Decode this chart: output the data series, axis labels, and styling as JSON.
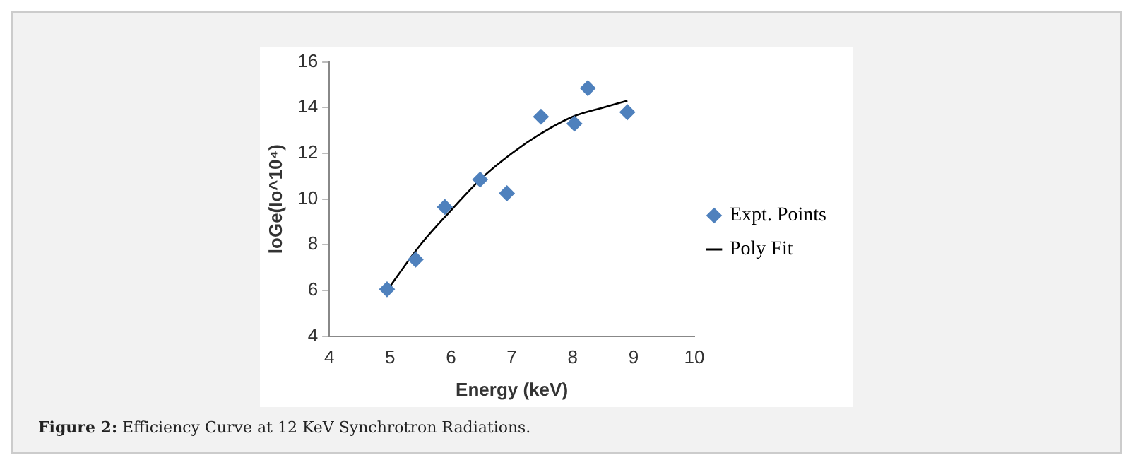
{
  "chart_data": {
    "type": "scatter",
    "xlabel": "Energy (keV)",
    "ylabel": "loGe(Io^10⁴)",
    "annotations": [
      "Figure 2: Efficiency Curve at 12 KeV Synchrotron Radiations."
    ],
    "xlim": [
      4,
      10
    ],
    "xticks": [
      4,
      5,
      6,
      7,
      8,
      9,
      10
    ],
    "ylim": [
      4,
      16
    ],
    "yticks": [
      4,
      6,
      8,
      10,
      12,
      14,
      16
    ],
    "grid": false,
    "legend": "right",
    "series": [
      {
        "name": "Expt. Points",
        "type": "scatter",
        "marker": "diamond",
        "color": "#4f81bd",
        "x": [
          4.95,
          5.42,
          5.9,
          6.48,
          6.92,
          7.48,
          8.03,
          8.25,
          8.9
        ],
        "values": [
          6.05,
          7.35,
          9.65,
          10.85,
          10.25,
          13.6,
          13.3,
          14.85,
          13.8
        ]
      },
      {
        "name": "Poly Fit",
        "type": "line",
        "marker": "none",
        "color": "#000000",
        "x": [
          4.95,
          5.5,
          6,
          6.5,
          7,
          7.5,
          8,
          8.5,
          8.9
        ],
        "values": [
          6.0,
          8.0,
          9.5,
          10.9,
          12.0,
          12.9,
          13.6,
          14.0,
          14.3
        ]
      }
    ]
  }
}
